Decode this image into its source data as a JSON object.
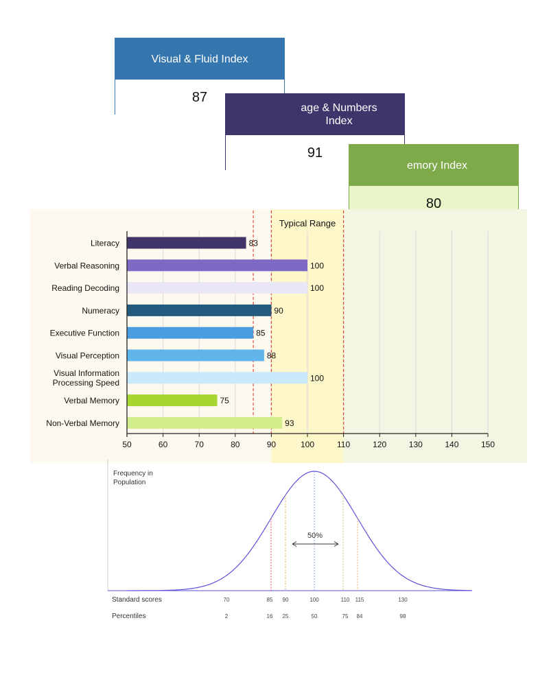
{
  "index_cards": {
    "visual": {
      "title": "Visual & Fluid Index",
      "value": "87",
      "color": "#3476ad"
    },
    "language": {
      "title": "age & Numbers Index",
      "value": "91",
      "color": "#3e356b"
    },
    "memory": {
      "title": "emory Index",
      "value": "80",
      "color": "#7faa4a"
    }
  },
  "chart_data": [
    {
      "type": "bar",
      "orientation": "horizontal",
      "categories": [
        "Literacy",
        "Verbal Reasoning",
        "Reading Decoding",
        "Numeracy",
        "Executive Function",
        "Visual Perception",
        "Visual Information Processing Speed",
        "Verbal Memory",
        "Non-Verbal Memory"
      ],
      "values": [
        83,
        100,
        100,
        90,
        85,
        88,
        100,
        75,
        93
      ],
      "value_labels": [
        "83",
        "100",
        "100",
        "90",
        "85",
        "88",
        "100",
        "75",
        "93"
      ],
      "bar_colors": [
        "#3f3568",
        "#7e6ac5",
        "#e9e6f5",
        "#235a7d",
        "#4a9ee0",
        "#62b5ea",
        "#cae9fb",
        "#a8d631",
        "#d4ed8c"
      ],
      "xlim": [
        50,
        150
      ],
      "xticks": [
        50,
        60,
        70,
        80,
        90,
        100,
        110,
        120,
        130,
        140,
        150
      ],
      "grid": true,
      "reference_lines": [
        85,
        90,
        110
      ],
      "typical_range": {
        "label": "Typical Range",
        "from": 90,
        "to": 110
      },
      "band_colors": {
        "low": "#fdf9ef",
        "typical": "#fdf7c9",
        "high": "#f1f7e2"
      }
    },
    {
      "type": "line",
      "curve": "normal_distribution",
      "mean": 100,
      "sd": 15,
      "ylabel": "Frequency in Population",
      "annotation": "50%",
      "row_labels": {
        "scores": "Standard scores",
        "percentiles": "Percentiles"
      },
      "marks": [
        {
          "score": "70",
          "percentile": "2"
        },
        {
          "score": "85",
          "percentile": "16"
        },
        {
          "score": "90",
          "percentile": "25"
        },
        {
          "score": "100",
          "percentile": "50"
        },
        {
          "score": "110",
          "percentile": "75"
        },
        {
          "score": "115",
          "percentile": "84"
        },
        {
          "score": "130",
          "percentile": "98"
        }
      ],
      "dashed_marks": [
        85,
        90,
        100,
        110,
        115
      ],
      "curve_color": "#5b4fd9"
    }
  ]
}
